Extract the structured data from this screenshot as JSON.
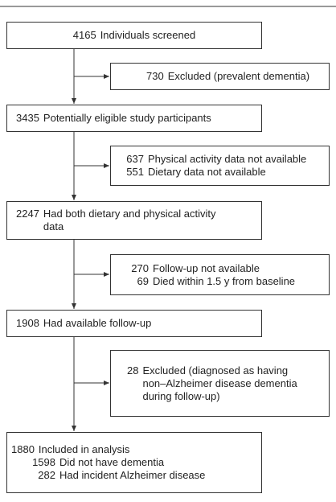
{
  "boxes": [
    {
      "rows": [
        {
          "n": 4165,
          "text": "Individuals screened"
        }
      ]
    },
    {
      "rows": [
        {
          "n": 730,
          "text": "Excluded (prevalent dementia)"
        }
      ]
    },
    {
      "rows": [
        {
          "n": 3435,
          "text": "Potentially eligible study participants"
        }
      ]
    },
    {
      "rows": [
        {
          "n": 637,
          "text": "Physical activity data not available"
        },
        {
          "n": 551,
          "text": "Dietary data not available"
        }
      ]
    },
    {
      "rows": [
        {
          "n": 2247,
          "text": "Had both dietary and physical activity data"
        }
      ]
    },
    {
      "rows": [
        {
          "n": 270,
          "text": "Follow-up not available"
        },
        {
          "n": 69,
          "text": "Died within 1.5 y from baseline"
        }
      ]
    },
    {
      "rows": [
        {
          "n": 1908,
          "text": "Had available follow-up"
        }
      ]
    },
    {
      "rows": [
        {
          "n": 28,
          "text": "Excluded (diagnosed as having non–Alzheimer disease dementia during follow-up)"
        }
      ]
    },
    {
      "rows": [
        {
          "n": 1880,
          "text": "Included in analysis"
        },
        {
          "n": 1598,
          "text": "Did not have dementia"
        },
        {
          "n": 282,
          "text": "Had incident Alzheimer disease"
        }
      ]
    }
  ]
}
